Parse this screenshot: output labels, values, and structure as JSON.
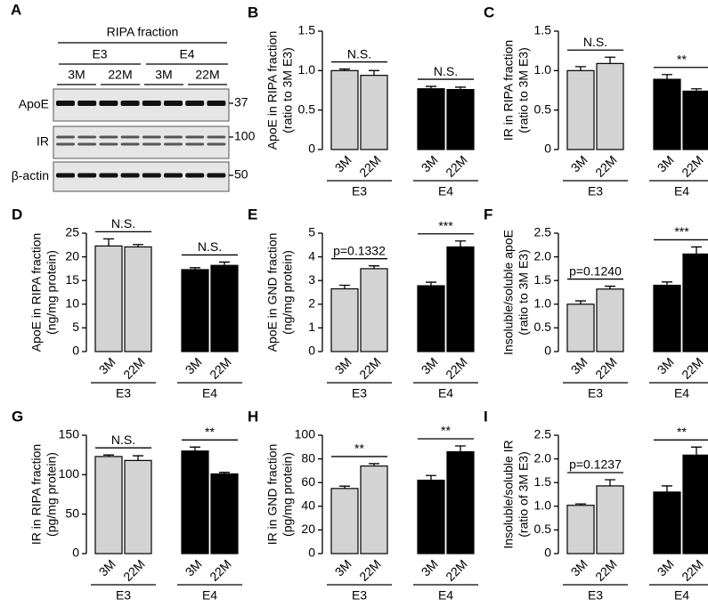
{
  "blot": {
    "panel": "A",
    "title": "RIPA fraction",
    "groups": [
      "E3",
      "E4"
    ],
    "lanes": [
      "3M",
      "22M",
      "3M",
      "22M"
    ],
    "rows": [
      {
        "name": "ApoE",
        "marker": "37"
      },
      {
        "name": "IR",
        "marker": "100"
      },
      {
        "name": "β-actin",
        "marker": "50"
      }
    ]
  },
  "chart_data": [
    {
      "type": "bar",
      "panel": "B",
      "ylabel": [
        "ApoE in RIPA fraction",
        "(ratio to 3M E3)"
      ],
      "categories": [
        "3M",
        "22M"
      ],
      "ylim": [
        0,
        1.5
      ],
      "yticks": [
        0,
        0.5,
        {
          "value": 1,
          "label": "1.0"
        },
        1.5
      ],
      "series": [
        {
          "name": "E3",
          "color": "#d3d3d3",
          "values": [
            1.0,
            0.94
          ],
          "errors": [
            0.02,
            0.06
          ],
          "annotation": "N.S."
        },
        {
          "name": "E4",
          "color": "#000000",
          "values": [
            0.77,
            0.76
          ],
          "errors": [
            0.03,
            0.03
          ],
          "annotation": "N.S."
        }
      ]
    },
    {
      "type": "bar",
      "panel": "C",
      "ylabel": [
        "IR in RIPA fraction",
        "(ratio to 3M E3)"
      ],
      "categories": [
        "3M",
        "22M"
      ],
      "ylim": [
        0,
        1.5
      ],
      "yticks": [
        0,
        0.5,
        {
          "value": 1,
          "label": "1.0"
        },
        1.5
      ],
      "series": [
        {
          "name": "E3",
          "color": "#d3d3d3",
          "values": [
            1.0,
            1.09
          ],
          "errors": [
            0.05,
            0.08
          ],
          "annotation": "N.S."
        },
        {
          "name": "E4",
          "color": "#000000",
          "values": [
            0.89,
            0.74
          ],
          "errors": [
            0.06,
            0.03
          ],
          "annotation": "**"
        }
      ]
    },
    {
      "type": "bar",
      "panel": "D",
      "ylabel": [
        "ApoE in RIPA fraction",
        "(ng/mg protein)"
      ],
      "categories": [
        "3M",
        "22M"
      ],
      "ylim": [
        0,
        25
      ],
      "yticks": [
        0,
        5,
        10,
        15,
        20,
        25
      ],
      "series": [
        {
          "name": "E3",
          "color": "#d3d3d3",
          "values": [
            22.3,
            22.1
          ],
          "errors": [
            1.5,
            0.5
          ],
          "annotation": "N.S."
        },
        {
          "name": "E4",
          "color": "#000000",
          "values": [
            17.3,
            18.2
          ],
          "errors": [
            0.4,
            0.7
          ],
          "annotation": "N.S."
        }
      ]
    },
    {
      "type": "bar",
      "panel": "E",
      "ylabel": [
        "ApoE in GND fraction",
        "(ng/mg protein)"
      ],
      "categories": [
        "3M",
        "22M"
      ],
      "ylim": [
        0,
        5
      ],
      "yticks": [
        0,
        1,
        2,
        3,
        4,
        5
      ],
      "series": [
        {
          "name": "E3",
          "color": "#d3d3d3",
          "values": [
            2.65,
            3.5
          ],
          "errors": [
            0.15,
            0.12
          ],
          "annotation": "p=0.1332"
        },
        {
          "name": "E4",
          "color": "#000000",
          "values": [
            2.78,
            4.42
          ],
          "errors": [
            0.15,
            0.25
          ],
          "annotation": "***"
        }
      ]
    },
    {
      "type": "bar",
      "panel": "F",
      "ylabel": [
        "Insoluble/soluble apoE",
        "(ratio to 3M E3)"
      ],
      "categories": [
        "3M",
        "22M"
      ],
      "ylim": [
        0,
        2.5
      ],
      "yticks": [
        0,
        0.5,
        {
          "value": 1,
          "label": "1.0"
        },
        1.5,
        {
          "value": 2,
          "label": "2.0"
        },
        2.5
      ],
      "series": [
        {
          "name": "E3",
          "color": "#d3d3d3",
          "values": [
            1.0,
            1.32
          ],
          "errors": [
            0.07,
            0.06
          ],
          "annotation": "p=0.1240"
        },
        {
          "name": "E4",
          "color": "#000000",
          "values": [
            1.4,
            2.06
          ],
          "errors": [
            0.07,
            0.15
          ],
          "annotation": "***"
        }
      ]
    },
    {
      "type": "bar",
      "panel": "G",
      "ylabel": [
        "IR in RIPA fraction",
        "(pg/mg protein)"
      ],
      "categories": [
        "3M",
        "22M"
      ],
      "ylim": [
        0,
        150
      ],
      "yticks": [
        0,
        50,
        100,
        150
      ],
      "series": [
        {
          "name": "E3",
          "color": "#d3d3d3",
          "values": [
            123,
            118
          ],
          "errors": [
            2,
            6
          ],
          "annotation": "N.S."
        },
        {
          "name": "E4",
          "color": "#000000",
          "values": [
            130,
            101
          ],
          "errors": [
            5,
            2
          ],
          "annotation": "**"
        }
      ]
    },
    {
      "type": "bar",
      "panel": "H",
      "ylabel": [
        "IR in GND fraction",
        "(pg/mg protein)"
      ],
      "categories": [
        "3M",
        "22M"
      ],
      "ylim": [
        0,
        100
      ],
      "yticks": [
        0,
        20,
        40,
        60,
        80,
        100
      ],
      "series": [
        {
          "name": "E3",
          "color": "#d3d3d3",
          "values": [
            55,
            74
          ],
          "errors": [
            2,
            2
          ],
          "annotation": "**"
        },
        {
          "name": "E4",
          "color": "#000000",
          "values": [
            62,
            86
          ],
          "errors": [
            4,
            5
          ],
          "annotation": "**"
        }
      ]
    },
    {
      "type": "bar",
      "panel": "I",
      "ylabel": [
        "Insoluble/soluble IR",
        "(ratio of 3M E3)"
      ],
      "categories": [
        "3M",
        "22M"
      ],
      "ylim": [
        0,
        2.5
      ],
      "yticks": [
        0,
        0.5,
        {
          "value": 1,
          "label": "1.0"
        },
        1.5,
        {
          "value": 2,
          "label": "2.0"
        },
        2.5
      ],
      "series": [
        {
          "name": "E3",
          "color": "#d3d3d3",
          "values": [
            1.02,
            1.43
          ],
          "errors": [
            0.03,
            0.13
          ],
          "annotation": "p=0.1237"
        },
        {
          "name": "E4",
          "color": "#000000",
          "values": [
            1.3,
            2.08
          ],
          "errors": [
            0.13,
            0.17
          ],
          "annotation": "**"
        }
      ]
    }
  ]
}
